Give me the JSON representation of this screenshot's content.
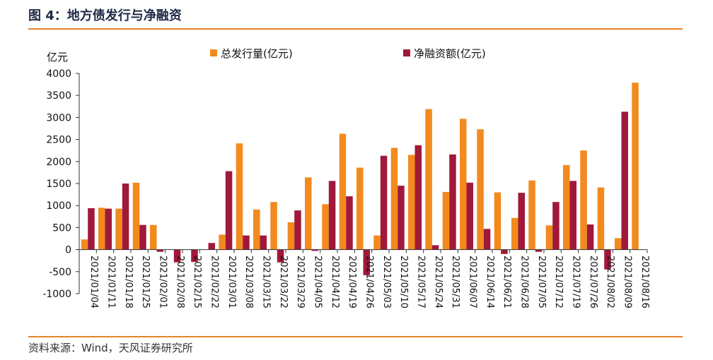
{
  "figure_title": "图 4：地方债发行与净融资",
  "source": "资料来源：Wind，天风证券研究所",
  "colors": {
    "accent": "#e8822a",
    "issuance": "#f28a1e",
    "net": "#a0183a"
  },
  "chart_data": {
    "type": "bar",
    "ylabel": "亿元",
    "ylim": [
      -1000,
      4000
    ],
    "yticks": [
      4000,
      3500,
      3000,
      2500,
      2000,
      1500,
      1000,
      500,
      0,
      -500,
      -1000
    ],
    "legend_position": "top",
    "grid": false,
    "categories": [
      "2021/01/04",
      "2021/01/11",
      "2021/01/18",
      "2021/01/25",
      "2021/02/01",
      "2021/02/08",
      "2021/02/15",
      "2021/02/22",
      "2021/03/01",
      "2021/03/08",
      "2021/03/15",
      "2021/03/22",
      "2021/03/29",
      "2021/04/05",
      "2021/04/12",
      "2021/04/19",
      "2021/04/26",
      "2021/05/03",
      "2021/05/10",
      "2021/05/17",
      "2021/05/24",
      "2021/05/31",
      "2021/06/07",
      "2021/06/14",
      "2021/06/21",
      "2021/06/28",
      "2021/07/05",
      "2021/07/12",
      "2021/07/19",
      "2021/07/26",
      "2021/08/02",
      "2021/08/09",
      "2021/08/16"
    ],
    "series": [
      {
        "name": "总发行量(亿元)",
        "values": [
          230,
          950,
          930,
          1520,
          560,
          0,
          0,
          0,
          340,
          2410,
          910,
          1080,
          620,
          1640,
          1030,
          2630,
          1860,
          320,
          2310,
          2150,
          3190,
          1310,
          2970,
          2730,
          1300,
          720,
          1570,
          550,
          1920,
          2250,
          1410,
          260,
          3790
        ]
      },
      {
        "name": "净融资额(亿元)",
        "values": [
          940,
          930,
          1500,
          560,
          -50,
          -290,
          -280,
          150,
          1780,
          320,
          320,
          -290,
          890,
          -30,
          1560,
          1210,
          -580,
          2130,
          1450,
          2370,
          100,
          2160,
          1520,
          470,
          -100,
          1290,
          -50,
          1080,
          1560,
          570,
          -450,
          3130,
          0
        ]
      }
    ]
  }
}
